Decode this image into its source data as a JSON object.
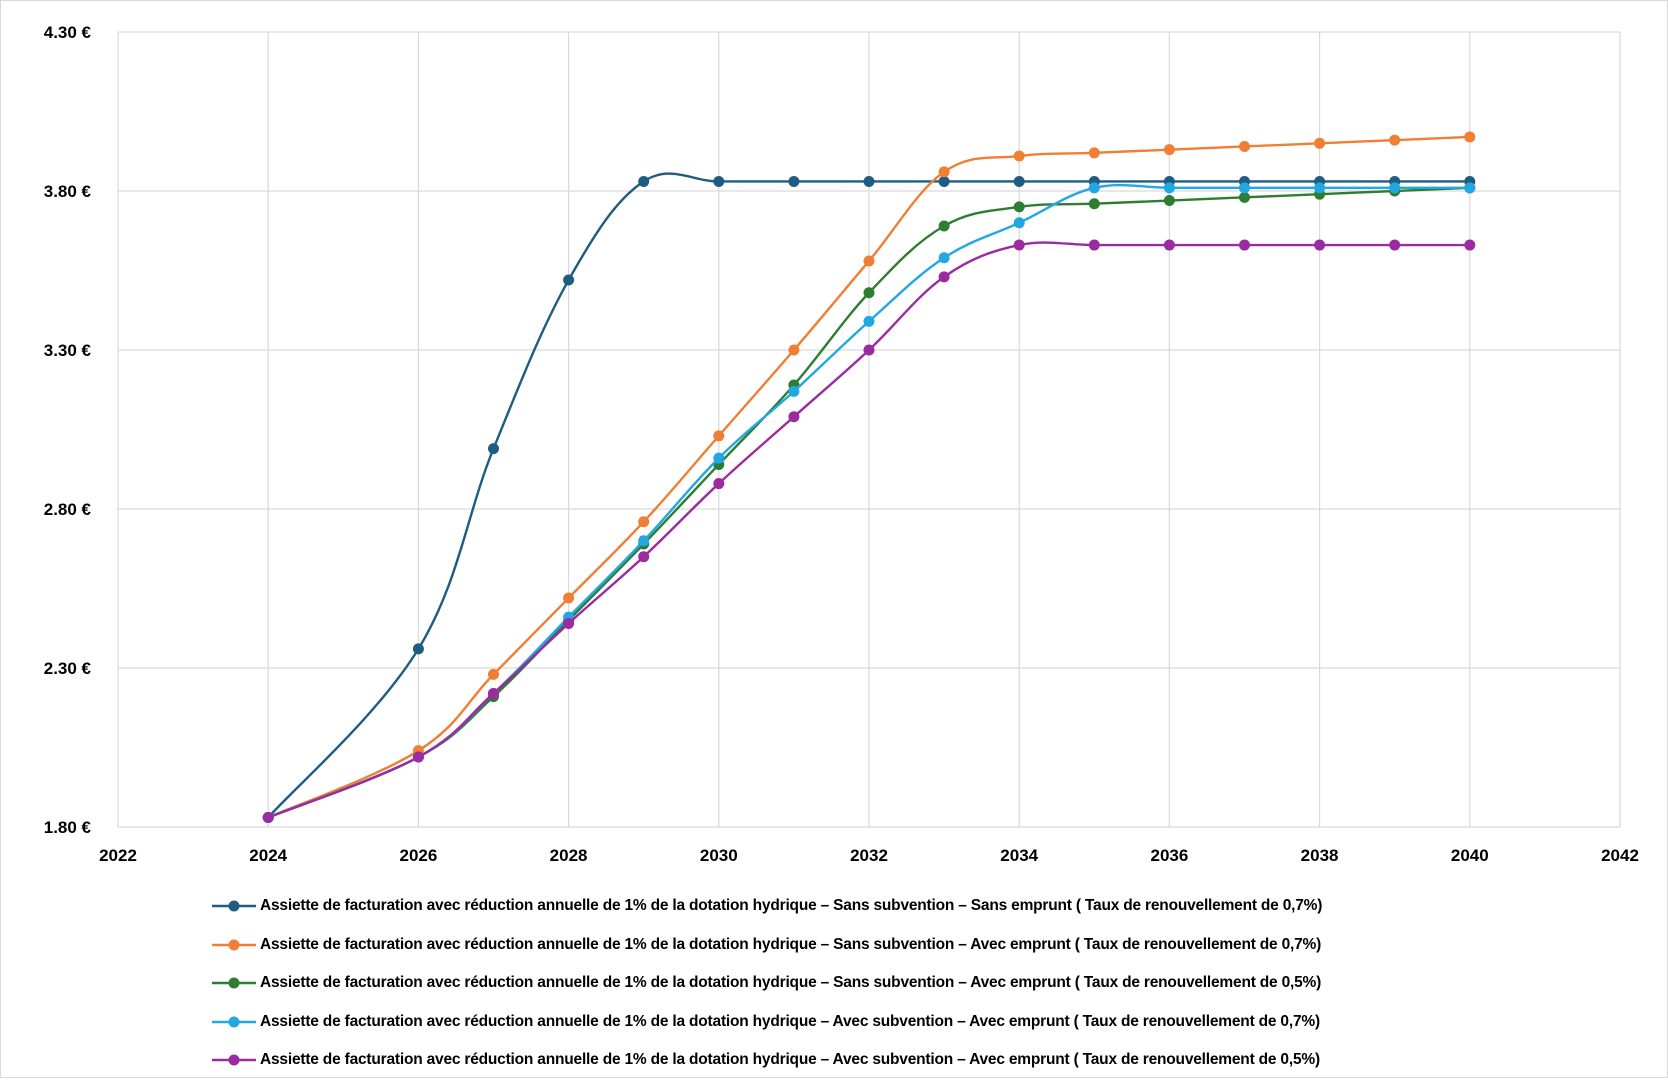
{
  "chart_data": {
    "type": "line",
    "x": [
      2024,
      2026,
      2027,
      2028,
      2029,
      2030,
      2031,
      2032,
      2033,
      2034,
      2035,
      2036,
      2037,
      2038,
      2039,
      2040
    ],
    "xlim": [
      2022,
      2042
    ],
    "ylim": [
      1.8,
      4.3
    ],
    "xticks": [
      "2022",
      "2024",
      "2026",
      "2028",
      "2030",
      "2032",
      "2034",
      "2036",
      "2038",
      "2040",
      "2042"
    ],
    "yticks": [
      "1.80 €",
      "2.30 €",
      "2.80 €",
      "3.30 €",
      "3.80 €",
      "4.30 €"
    ],
    "grid": true,
    "smooth": true,
    "legend_position": "bottom",
    "series": [
      {
        "name": "Assiette de facturation avec réduction annuelle de 1% de la dotation hydrique – Sans subvention – Sans emprunt ( Taux de renouvellement de 0,7%)",
        "color": "#1f5c82",
        "values": [
          1.83,
          2.36,
          2.99,
          3.52,
          3.83,
          3.83,
          3.83,
          3.83,
          3.83,
          3.83,
          3.83,
          3.83,
          3.83,
          3.83,
          3.83,
          3.83
        ]
      },
      {
        "name": "Assiette de facturation avec réduction annuelle de 1% de la dotation hydrique – Sans subvention – Avec emprunt ( Taux de renouvellement de 0,7%)",
        "color": "#f07e34",
        "values": [
          1.83,
          2.04,
          2.28,
          2.52,
          2.76,
          3.03,
          3.3,
          3.58,
          3.86,
          3.91,
          3.92,
          3.93,
          3.94,
          3.95,
          3.96,
          3.97
        ]
      },
      {
        "name": "Assiette de facturation avec réduction annuelle de 1% de la dotation hydrique – Sans subvention – Avec emprunt ( Taux de renouvellement de 0,5%)",
        "color": "#2e7d32",
        "values": [
          1.83,
          2.02,
          2.21,
          2.45,
          2.69,
          2.94,
          3.19,
          3.48,
          3.69,
          3.75,
          3.76,
          3.77,
          3.78,
          3.79,
          3.8,
          3.81
        ]
      },
      {
        "name": "Assiette de facturation avec réduction annuelle de 1% de la dotation hydrique – Avec subvention – Avec emprunt ( Taux de renouvellement de 0,7%)",
        "color": "#22a7e0",
        "values": [
          1.83,
          2.02,
          2.22,
          2.46,
          2.7,
          2.96,
          3.17,
          3.39,
          3.59,
          3.7,
          3.81,
          3.81,
          3.81,
          3.81,
          3.81,
          3.81
        ]
      },
      {
        "name": "Assiette de facturation avec réduction annuelle de 1% de la dotation hydrique – Avec subvention – Avec emprunt ( Taux de renouvellement de 0,5%)",
        "color": "#9c2aa0",
        "values": [
          1.83,
          2.02,
          2.22,
          2.44,
          2.65,
          2.88,
          3.09,
          3.3,
          3.53,
          3.63,
          3.63,
          3.63,
          3.63,
          3.63,
          3.63,
          3.63
        ]
      }
    ]
  }
}
